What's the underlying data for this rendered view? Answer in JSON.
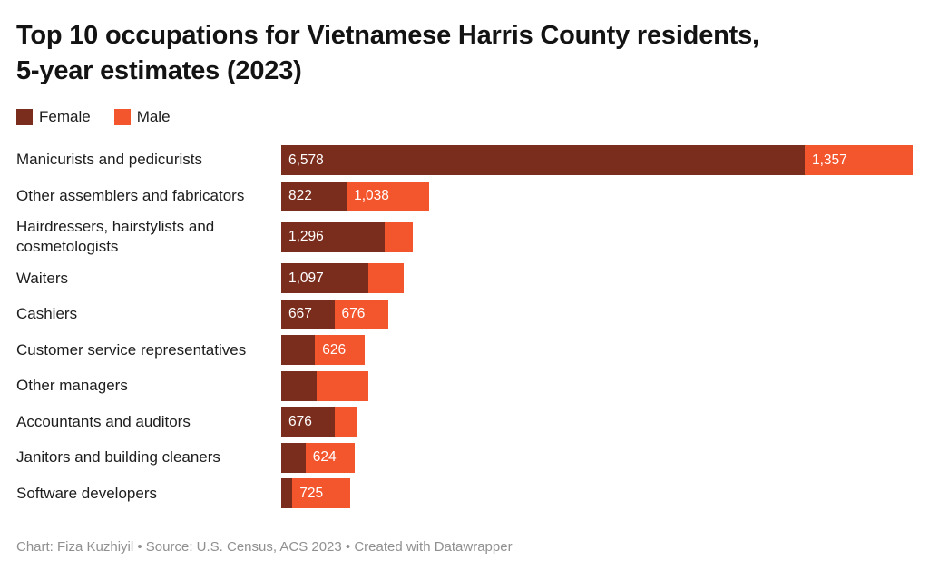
{
  "title": "Top 10 occupations for Vietnamese Harris County residents, 5-year estimates (2023)",
  "title_lines": [
    "Top 10 occupations for Vietnamese Harris County residents,",
    "5-year estimates (2023)"
  ],
  "legend": {
    "items": [
      {
        "label": "Female",
        "color": "#7a2c1d"
      },
      {
        "label": "Male",
        "color": "#f3552d"
      }
    ]
  },
  "colors": {
    "female": "#7a2c1d",
    "male": "#f3552d",
    "title_text": "#131313",
    "category_text": "#1d1d1d",
    "value_text": "#ffffff",
    "footer_text": "#909090",
    "background": "#ffffff"
  },
  "footer": {
    "text": "Chart: Fiza Kuzhiyil • Source: U.S. Census, ACS 2023 • Created with Datawrapper"
  },
  "chart_data": {
    "type": "bar",
    "stacked": true,
    "orientation": "horizontal",
    "series_names": [
      "Female",
      "Male"
    ],
    "x_max": 7935,
    "grid": false,
    "legend_position": "top-left",
    "categories": [
      "Manicurists and pedicurists",
      "Other assemblers and fabricators",
      "Hairdressers, hairstylists and cosmetologists",
      "Waiters",
      "Cashiers",
      "Customer service representatives",
      "Other managers",
      "Accountants and auditors",
      "Janitors and building cleaners",
      "Software developers"
    ],
    "rows": [
      {
        "category": "Manicurists and pedicurists",
        "female": 6578,
        "male": 1357,
        "female_label": "6,578",
        "male_label": "1,357"
      },
      {
        "category": "Other assemblers and fabricators",
        "female": 822,
        "male": 1038,
        "female_label": "822",
        "male_label": "1,038"
      },
      {
        "category": "Hairdressers, hairstylists and cosmetologists",
        "female": 1296,
        "male": 360,
        "female_label": "1,296",
        "male_label": ""
      },
      {
        "category": "Waiters",
        "female": 1097,
        "male": 445,
        "female_label": "1,097",
        "male_label": ""
      },
      {
        "category": "Cashiers",
        "female": 667,
        "male": 676,
        "female_label": "667",
        "male_label": "676"
      },
      {
        "category": "Customer service representatives",
        "female": 425,
        "male": 626,
        "female_label": "",
        "male_label": "626"
      },
      {
        "category": "Other managers",
        "female": 440,
        "male": 650,
        "female_label": "",
        "male_label": ""
      },
      {
        "category": "Accountants and auditors",
        "female": 676,
        "male": 280,
        "female_label": "676",
        "male_label": ""
      },
      {
        "category": "Janitors and building cleaners",
        "female": 305,
        "male": 624,
        "female_label": "",
        "male_label": "624"
      },
      {
        "category": "Software developers",
        "female": 140,
        "male": 725,
        "female_label": "",
        "male_label": "725"
      }
    ],
    "note": "Values without a visible label are estimated from bar pixel widths."
  }
}
